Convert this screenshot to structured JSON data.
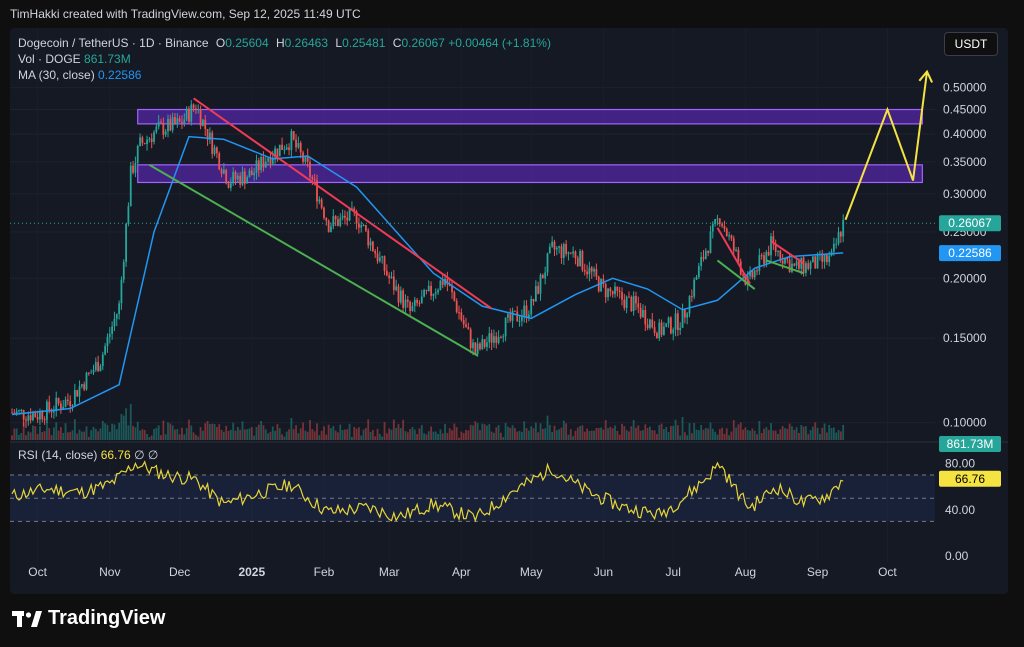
{
  "header": {
    "credit": "TimHakki created with TradingView.com, Sep 12, 2025 11:49 UTC"
  },
  "legend": {
    "symbol": "Dogecoin / TetherUS · 1D · Binance",
    "o_label": "O",
    "o_val": "0.25604",
    "h_label": "H",
    "h_val": "0.26463",
    "l_label": "L",
    "l_val": "0.25481",
    "c_label": "C",
    "c_val": "0.26067",
    "change": "+0.00464 (+1.81%)",
    "vol_label": "Vol · DOGE",
    "vol_val": "861.73M",
    "ma_label": "MA (30, close)",
    "ma_val": "0.22586"
  },
  "rsi_legend": {
    "label": "RSI (14, close)",
    "value": "66.76",
    "icons": "∅ ∅"
  },
  "currency_button": "USDT",
  "footer": {
    "brand": "TradingView"
  },
  "colors": {
    "up": "#26a69a",
    "down": "#ef5350",
    "ma": "#2196f3",
    "rsi": "#e6d53a",
    "zone": "#7b2ff7",
    "green_line": "#4caf50",
    "red_line": "#ef3b55",
    "arrow": "#f5e342"
  },
  "chart_data": [
    {
      "type": "candlestick",
      "title": "Dogecoin / TetherUS · 1D · Binance",
      "yscale": "log",
      "ylim": [
        0.092,
        0.56
      ],
      "y_ticks": [
        "0.50000",
        "0.45000",
        "0.40000",
        "0.35000",
        "0.30000",
        "0.25000",
        "0.20000",
        "0.15000",
        "0.10000"
      ],
      "y_tick_values": [
        0.5,
        0.45,
        0.4,
        0.35,
        0.3,
        0.25,
        0.2,
        0.15,
        0.1
      ],
      "x_ticks": [
        "Oct",
        "Nov",
        "Dec",
        "2025",
        "Feb",
        "Mar",
        "Apr",
        "May",
        "Jun",
        "Jul",
        "Aug",
        "Sep",
        "Oct"
      ],
      "x_tick_dates": [
        "2024-10-01",
        "2024-11-01",
        "2024-12-01",
        "2025-01-01",
        "2025-02-01",
        "2025-03-01",
        "2025-04-01",
        "2025-05-01",
        "2025-06-01",
        "2025-07-01",
        "2025-08-01",
        "2025-09-01",
        "2025-10-01"
      ],
      "last_price_label": "0.26067",
      "ma_label": "0.22586",
      "volume_label": "861.73M",
      "price_path": [
        [
          "2024-09-20",
          0.105
        ],
        [
          "2024-10-01",
          0.104
        ],
        [
          "2024-10-15",
          0.112
        ],
        [
          "2024-10-28",
          0.135
        ],
        [
          "2024-11-05",
          0.175
        ],
        [
          "2024-11-10",
          0.33
        ],
        [
          "2024-11-14",
          0.38
        ],
        [
          "2024-11-22",
          0.41
        ],
        [
          "2024-12-01",
          0.42
        ],
        [
          "2024-12-08",
          0.46
        ],
        [
          "2024-12-15",
          0.38
        ],
        [
          "2024-12-22",
          0.32
        ],
        [
          "2025-01-01",
          0.33
        ],
        [
          "2025-01-08",
          0.36
        ],
        [
          "2025-01-18",
          0.39
        ],
        [
          "2025-01-25",
          0.34
        ],
        [
          "2025-02-03",
          0.26
        ],
        [
          "2025-02-15",
          0.27
        ],
        [
          "2025-03-01",
          0.2
        ],
        [
          "2025-03-10",
          0.17
        ],
        [
          "2025-03-25",
          0.2
        ],
        [
          "2025-04-07",
          0.14
        ],
        [
          "2025-04-20",
          0.16
        ],
        [
          "2025-05-01",
          0.175
        ],
        [
          "2025-05-10",
          0.23
        ],
        [
          "2025-05-20",
          0.225
        ],
        [
          "2025-06-01",
          0.19
        ],
        [
          "2025-06-15",
          0.175
        ],
        [
          "2025-06-25",
          0.155
        ],
        [
          "2025-07-05",
          0.165
        ],
        [
          "2025-07-15",
          0.23
        ],
        [
          "2025-07-21",
          0.27
        ],
        [
          "2025-08-02",
          0.195
        ],
        [
          "2025-08-12",
          0.235
        ],
        [
          "2025-08-22",
          0.21
        ],
        [
          "2025-09-01",
          0.215
        ],
        [
          "2025-09-07",
          0.22
        ],
        [
          "2025-09-12",
          0.261
        ]
      ],
      "ma30_path": [
        [
          "2024-09-20",
          0.104
        ],
        [
          "2024-10-15",
          0.107
        ],
        [
          "2024-11-05",
          0.12
        ],
        [
          "2024-11-20",
          0.25
        ],
        [
          "2024-12-05",
          0.395
        ],
        [
          "2024-12-20",
          0.39
        ],
        [
          "2025-01-10",
          0.355
        ],
        [
          "2025-01-25",
          0.36
        ],
        [
          "2025-02-15",
          0.31
        ],
        [
          "2025-03-01",
          0.26
        ],
        [
          "2025-03-20",
          0.205
        ],
        [
          "2025-04-10",
          0.175
        ],
        [
          "2025-05-01",
          0.165
        ],
        [
          "2025-05-20",
          0.185
        ],
        [
          "2025-06-05",
          0.2
        ],
        [
          "2025-06-20",
          0.19
        ],
        [
          "2025-07-05",
          0.172
        ],
        [
          "2025-07-20",
          0.18
        ],
        [
          "2025-08-05",
          0.21
        ],
        [
          "2025-08-20",
          0.222
        ],
        [
          "2025-09-12",
          0.226
        ]
      ],
      "zones": [
        {
          "from": "2024-11-13",
          "to": "2025-10-16",
          "top": 0.45,
          "bottom": 0.42
        },
        {
          "from": "2024-11-13",
          "to": "2025-10-16",
          "top": 0.345,
          "bottom": 0.317
        }
      ],
      "trendlines": [
        {
          "color": "red",
          "from": [
            "2024-12-07",
            0.475
          ],
          "to": [
            "2025-04-14",
            0.173
          ]
        },
        {
          "color": "green",
          "from": [
            "2024-11-18",
            0.345
          ],
          "to": [
            "2025-04-08",
            0.138
          ]
        },
        {
          "color": "red",
          "from": [
            "2025-07-20",
            0.255
          ],
          "to": [
            "2025-08-03",
            0.195
          ]
        },
        {
          "color": "green",
          "from": [
            "2025-07-20",
            0.218
          ],
          "to": [
            "2025-08-05",
            0.19
          ]
        },
        {
          "color": "red",
          "from": [
            "2025-08-12",
            0.239
          ],
          "to": [
            "2025-08-26",
            0.215
          ]
        },
        {
          "color": "green",
          "from": [
            "2025-08-10",
            0.218
          ],
          "to": [
            "2025-08-26",
            0.205
          ]
        }
      ],
      "projection": [
        [
          "2025-09-13",
          0.265
        ],
        [
          "2025-10-01",
          0.45
        ],
        [
          "2025-10-12",
          0.32
        ],
        [
          "2025-10-18",
          0.54
        ]
      ]
    },
    {
      "type": "line",
      "title": "RSI (14, close)",
      "ylim": [
        -5,
        95
      ],
      "y_ticks": [
        "80.00",
        "40.00",
        "0.00"
      ],
      "y_tick_values": [
        80,
        40,
        0
      ],
      "bands": [
        70,
        50,
        30
      ],
      "last_value_label": "66.76",
      "rsi_path": [
        [
          "2024-09-20",
          52
        ],
        [
          "2024-10-05",
          58
        ],
        [
          "2024-10-20",
          55
        ],
        [
          "2024-11-01",
          62
        ],
        [
          "2024-11-12",
          80
        ],
        [
          "2024-11-25",
          70
        ],
        [
          "2024-12-08",
          66
        ],
        [
          "2024-12-20",
          45
        ],
        [
          "2025-01-05",
          55
        ],
        [
          "2025-01-18",
          62
        ],
        [
          "2025-02-03",
          38
        ],
        [
          "2025-02-20",
          42
        ],
        [
          "2025-03-05",
          34
        ],
        [
          "2025-03-20",
          45
        ],
        [
          "2025-04-07",
          33
        ],
        [
          "2025-04-22",
          55
        ],
        [
          "2025-05-10",
          76
        ],
        [
          "2025-05-25",
          56
        ],
        [
          "2025-06-10",
          42
        ],
        [
          "2025-06-25",
          36
        ],
        [
          "2025-07-10",
          58
        ],
        [
          "2025-07-21",
          80
        ],
        [
          "2025-08-03",
          42
        ],
        [
          "2025-08-14",
          60
        ],
        [
          "2025-08-26",
          46
        ],
        [
          "2025-09-05",
          52
        ],
        [
          "2025-09-12",
          66.76
        ]
      ]
    }
  ]
}
